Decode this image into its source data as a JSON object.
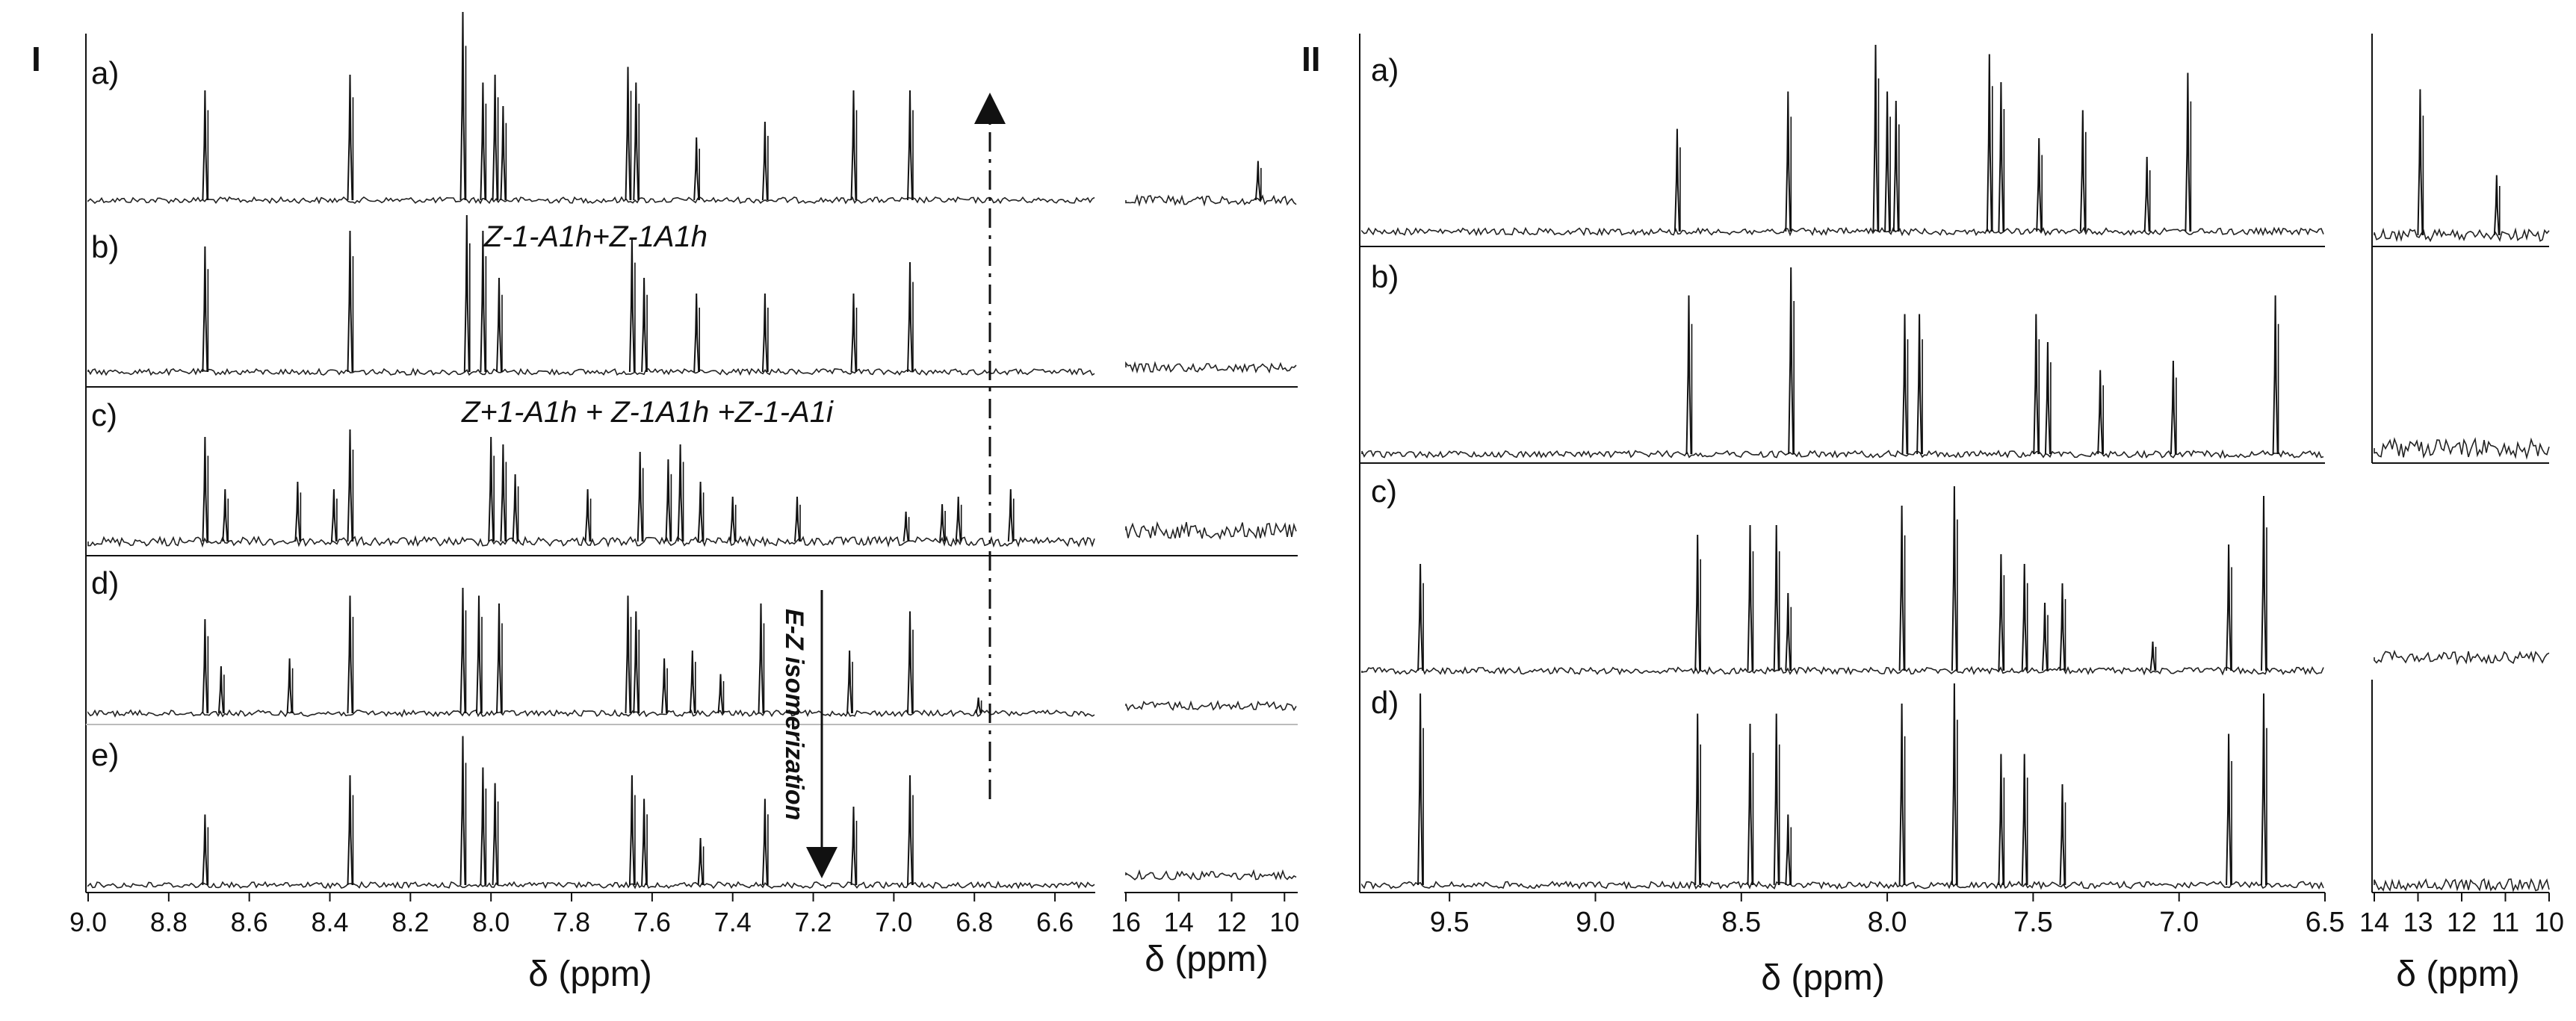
{
  "figure": {
    "panel_I_label": "I",
    "panel_II_label": "II"
  },
  "chart_data": [
    {
      "id": "I-main",
      "type": "line",
      "xlabel": "δ (ppm)",
      "xlim": [
        9.0,
        6.5
      ],
      "xticks": [
        "9.0",
        "8.8",
        "8.6",
        "8.4",
        "8.2",
        "8.0",
        "7.8",
        "7.6",
        "7.4",
        "7.2",
        "7.0",
        "6.8",
        "6.6"
      ],
      "grid": false,
      "series": [
        {
          "name": "a)",
          "peaks": [
            [
              8.71,
              0.7
            ],
            [
              8.35,
              0.8
            ],
            [
              8.07,
              1.2
            ],
            [
              8.02,
              0.75
            ],
            [
              7.99,
              0.8
            ],
            [
              7.97,
              0.6
            ],
            [
              7.66,
              0.85
            ],
            [
              7.64,
              0.75
            ],
            [
              7.49,
              0.4
            ],
            [
              7.32,
              0.5
            ],
            [
              7.1,
              0.7
            ],
            [
              6.96,
              0.7
            ]
          ]
        },
        {
          "name": "b)",
          "peaks": [
            [
              8.71,
              0.8
            ],
            [
              8.35,
              0.9
            ],
            [
              8.06,
              1.0
            ],
            [
              8.02,
              0.9
            ],
            [
              7.98,
              0.6
            ],
            [
              7.65,
              0.85
            ],
            [
              7.62,
              0.6
            ],
            [
              7.49,
              0.5
            ],
            [
              7.32,
              0.5
            ],
            [
              7.1,
              0.5
            ],
            [
              6.96,
              0.7
            ]
          ]
        },
        {
          "name": "c)",
          "peaks": [
            [
              8.71,
              0.7
            ],
            [
              8.66,
              0.35
            ],
            [
              8.48,
              0.4
            ],
            [
              8.39,
              0.35
            ],
            [
              8.35,
              0.75
            ],
            [
              8.0,
              0.7
            ],
            [
              7.97,
              0.65
            ],
            [
              7.94,
              0.45
            ],
            [
              7.76,
              0.35
            ],
            [
              7.63,
              0.6
            ],
            [
              7.56,
              0.55
            ],
            [
              7.53,
              0.65
            ],
            [
              7.48,
              0.4
            ],
            [
              7.4,
              0.3
            ],
            [
              7.24,
              0.3
            ],
            [
              6.97,
              0.2
            ],
            [
              6.88,
              0.25
            ],
            [
              6.84,
              0.3
            ],
            [
              6.71,
              0.35
            ]
          ]
        },
        {
          "name": "d)",
          "peaks": [
            [
              8.71,
              0.6
            ],
            [
              8.67,
              0.3
            ],
            [
              8.5,
              0.35
            ],
            [
              8.35,
              0.75
            ],
            [
              8.07,
              0.8
            ],
            [
              8.03,
              0.75
            ],
            [
              7.98,
              0.7
            ],
            [
              7.66,
              0.75
            ],
            [
              7.64,
              0.65
            ],
            [
              7.57,
              0.35
            ],
            [
              7.5,
              0.4
            ],
            [
              7.43,
              0.25
            ],
            [
              7.33,
              0.7
            ],
            [
              7.11,
              0.4
            ],
            [
              6.96,
              0.65
            ],
            [
              6.79,
              0.1
            ]
          ]
        },
        {
          "name": "e)",
          "peaks": [
            [
              8.71,
              0.45
            ],
            [
              8.35,
              0.7
            ],
            [
              8.07,
              0.95
            ],
            [
              8.02,
              0.75
            ],
            [
              7.99,
              0.65
            ],
            [
              7.65,
              0.7
            ],
            [
              7.62,
              0.55
            ],
            [
              7.48,
              0.3
            ],
            [
              7.32,
              0.55
            ],
            [
              7.1,
              0.5
            ],
            [
              6.96,
              0.7
            ]
          ]
        }
      ],
      "annotations": [
        "Z-1-A1h+Z-1A1h",
        "Z+1-A1h + Z-1A1h +Z-1-A1i",
        "E-Z isomerization"
      ]
    },
    {
      "id": "I-inset",
      "type": "line",
      "xlabel": "δ (ppm)",
      "xlim": [
        16,
        9.5
      ],
      "xticks": [
        "16",
        "14",
        "12",
        "10"
      ],
      "series_peaks": [
        [
          [
            11.0,
            0.25
          ]
        ],
        [],
        [],
        [],
        []
      ]
    },
    {
      "id": "II-main",
      "type": "line",
      "xlabel": "δ (ppm)",
      "xlim": [
        9.8,
        6.5
      ],
      "xticks": [
        "9.5",
        "9.0",
        "8.5",
        "8.0",
        "7.5",
        "7.0",
        "6.5"
      ],
      "grid": false,
      "series": [
        {
          "name": "a)",
          "peaks": [
            [
              8.72,
              0.55
            ],
            [
              8.34,
              0.75
            ],
            [
              8.04,
              1.0
            ],
            [
              8.0,
              0.75
            ],
            [
              7.97,
              0.7
            ],
            [
              7.65,
              0.95
            ],
            [
              7.61,
              0.8
            ],
            [
              7.48,
              0.5
            ],
            [
              7.33,
              0.65
            ],
            [
              7.11,
              0.4
            ],
            [
              6.97,
              0.85
            ]
          ]
        },
        {
          "name": "b)",
          "peaks": [
            [
              8.68,
              0.85
            ],
            [
              8.33,
              1.0
            ],
            [
              7.94,
              0.75
            ],
            [
              7.89,
              0.75
            ],
            [
              7.49,
              0.75
            ],
            [
              7.45,
              0.6
            ],
            [
              7.27,
              0.45
            ],
            [
              7.02,
              0.5
            ],
            [
              6.67,
              0.85
            ]
          ]
        },
        {
          "name": "c)",
          "peaks": [
            [
              9.6,
              0.55
            ],
            [
              8.65,
              0.7
            ],
            [
              8.47,
              0.75
            ],
            [
              8.38,
              0.75
            ],
            [
              8.34,
              0.4
            ],
            [
              7.95,
              0.85
            ],
            [
              7.77,
              0.95
            ],
            [
              7.61,
              0.6
            ],
            [
              7.53,
              0.55
            ],
            [
              7.46,
              0.35
            ],
            [
              7.4,
              0.45
            ],
            [
              7.09,
              0.15
            ],
            [
              6.83,
              0.65
            ],
            [
              6.71,
              0.9
            ]
          ]
        },
        {
          "name": "d)",
          "peaks": [
            [
              9.6,
              0.95
            ],
            [
              8.65,
              0.85
            ],
            [
              8.47,
              0.8
            ],
            [
              8.38,
              0.85
            ],
            [
              8.34,
              0.35
            ],
            [
              7.95,
              0.9
            ],
            [
              7.77,
              1.0
            ],
            [
              7.61,
              0.65
            ],
            [
              7.53,
              0.65
            ],
            [
              7.4,
              0.5
            ],
            [
              6.83,
              0.75
            ],
            [
              6.71,
              0.95
            ]
          ]
        }
      ]
    },
    {
      "id": "II-inset",
      "type": "line",
      "xlabel": "δ (ppm)",
      "xlim": [
        14,
        10
      ],
      "xticks": [
        "14",
        "13",
        "12",
        "11",
        "10"
      ],
      "series_peaks": [
        [
          [
            12.95,
            0.85
          ],
          [
            11.2,
            0.35
          ]
        ],
        [],
        [],
        []
      ]
    }
  ]
}
